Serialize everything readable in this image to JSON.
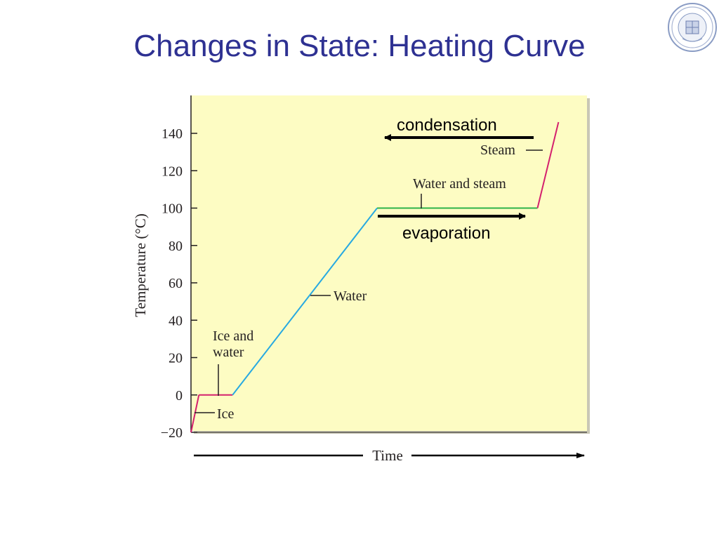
{
  "slide": {
    "title": "Changes in State: Heating Curve"
  },
  "seal": {
    "icon": "university-seal-icon"
  },
  "colors": {
    "title": "#2e3192",
    "plot_background": "#fdfcc3",
    "ice_segment": "#d4216e",
    "water_segment": "#27a9e1",
    "plateau_segment": "#2db34a",
    "axis": "#231f20"
  },
  "chart_data": {
    "type": "line",
    "xlabel": "Time",
    "ylabel": "Temperature (°C)",
    "ylim": [
      -20,
      160
    ],
    "y_ticks": [
      -20,
      0,
      20,
      40,
      60,
      80,
      100,
      120,
      140
    ],
    "y_tick_labels": [
      "−20",
      "0",
      "20",
      "40",
      "60",
      "80",
      "100",
      "120",
      "140"
    ],
    "x_axis_numbered": false,
    "grid": false,
    "xlim": [
      0,
      100
    ],
    "series": [
      {
        "name": "Ice",
        "color": "#d4216e",
        "points": [
          [
            0,
            -20
          ],
          [
            2,
            0
          ]
        ]
      },
      {
        "name": "Ice and water",
        "color": "#d4216e",
        "points": [
          [
            2,
            0
          ],
          [
            10.5,
            0
          ]
        ]
      },
      {
        "name": "Water",
        "color": "#27a9e1",
        "points": [
          [
            10.5,
            0
          ],
          [
            47,
            100
          ]
        ]
      },
      {
        "name": "Water and steam",
        "color": "#2db34a",
        "points": [
          [
            47,
            100
          ],
          [
            87.5,
            100
          ]
        ]
      },
      {
        "name": "Steam",
        "color": "#d4216e",
        "points": [
          [
            87.5,
            100
          ],
          [
            92.8,
            146
          ]
        ]
      }
    ],
    "annotations": {
      "ice": "Ice",
      "ice_and_water_line1": "Ice and",
      "ice_and_water_line2": "water",
      "water": "Water",
      "water_and_steam": "Water and steam",
      "steam": "Steam",
      "condensation": "condensation",
      "evaporation": "evaporation"
    }
  }
}
